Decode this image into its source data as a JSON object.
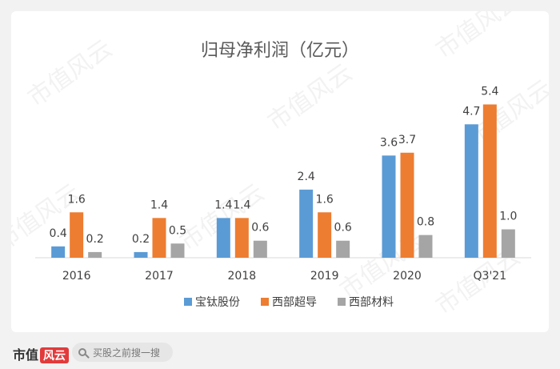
{
  "chart_data": {
    "type": "bar",
    "title": "归母净利润（亿元）",
    "categories": [
      "2016",
      "2017",
      "2018",
      "2019",
      "2020",
      "Q3'21"
    ],
    "series": [
      {
        "name": "宝钛股份",
        "color": "#5b9bd5",
        "values": [
          0.4,
          0.2,
          1.4,
          2.4,
          3.6,
          4.7
        ]
      },
      {
        "name": "西部超导",
        "color": "#ed7d31",
        "values": [
          1.6,
          1.4,
          1.4,
          1.6,
          3.7,
          5.4
        ]
      },
      {
        "name": "西部材料",
        "color": "#a5a5a5",
        "values": [
          0.2,
          0.5,
          0.6,
          0.6,
          0.8,
          1.0
        ]
      }
    ],
    "value_labels": [
      [
        "0.4",
        "0.2",
        "1.4",
        "2.4",
        "3.6",
        "4.7"
      ],
      [
        "1.6",
        "1.4",
        "1.4",
        "1.6",
        "3.7",
        "5.4"
      ],
      [
        "0.2",
        "0.5",
        "0.6",
        "0.6",
        "0.8",
        "1.0"
      ]
    ],
    "xlabel": "",
    "ylabel": "",
    "ylim": [
      0,
      6
    ],
    "grid": false,
    "legend": "bottom"
  },
  "watermark": "市值风云",
  "footer": {
    "brand": "市值",
    "brand_badge": "风云",
    "search_placeholder": "买股之前搜一搜"
  }
}
